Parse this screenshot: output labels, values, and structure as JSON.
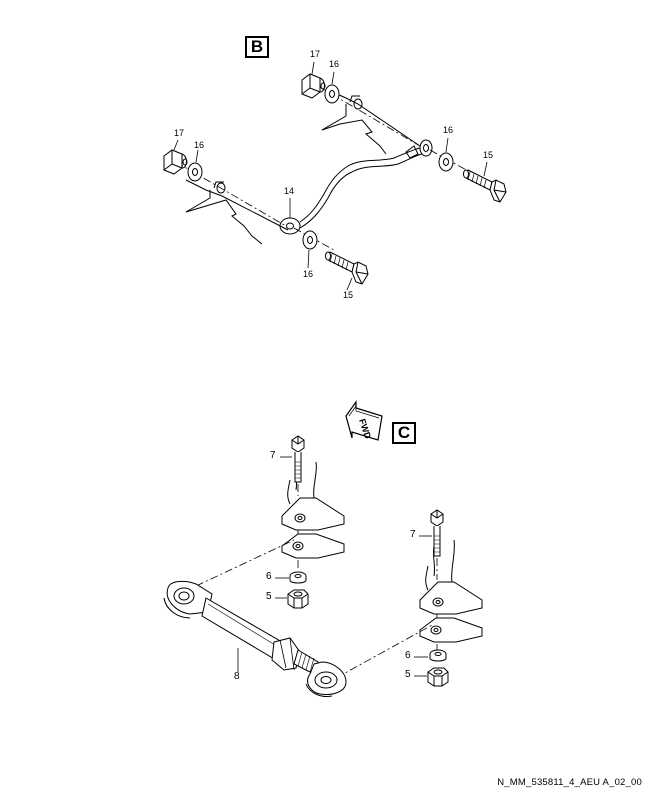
{
  "callouts": {
    "b": "B",
    "c": "C"
  },
  "fwd_arrow_text": "FWD",
  "labels_b": {
    "nut_upper": "17",
    "washer_upper": "16",
    "nut_left": "17",
    "washer_left": "16",
    "washer_right": "16",
    "bolt_right": "15",
    "strap": "14",
    "washer_lower": "16",
    "bolt_lower": "15"
  },
  "labels_c": {
    "bolt_left": "7",
    "washer_left": "6",
    "nut_left": "5",
    "rod": "8",
    "bolt_right": "7",
    "washer_right": "6",
    "nut_right": "5"
  },
  "footer": "N_MM_535811_4_AEU A_02_00"
}
